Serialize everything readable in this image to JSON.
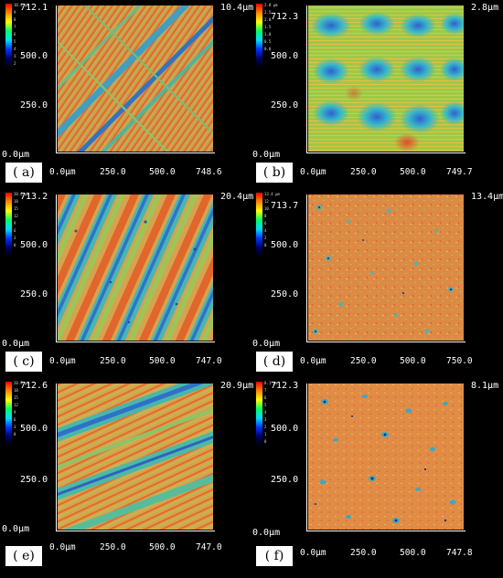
{
  "colors": {
    "scale": [
      "#ff0000",
      "#ff8800",
      "#ffff00",
      "#00ff66",
      "#00ddff",
      "#0033ff",
      "#000066",
      "#000000"
    ],
    "surface_base": "#d8a050",
    "background": "#000000"
  },
  "panels": [
    {
      "id": "a",
      "letter": "( a)",
      "zmax": "10.4μm",
      "ymax": "712.1",
      "y_mid_hi": "500.0",
      "y_mid_lo": "250.0",
      "y0": "0.0μm",
      "x0": "0.0μm",
      "x1": "250.0",
      "x2": "500.0",
      "xmax": "748.6",
      "cbar_ticks": [
        "10.4 μm",
        "9",
        "8",
        "7",
        "6",
        "5",
        "4",
        "3",
        "2",
        "1"
      ],
      "texture": "diagonal-scratches"
    },
    {
      "id": "b",
      "letter": "( b)",
      "zmax": "2.8μm",
      "ymax": "712.3",
      "y_mid_hi": "500.0",
      "y_mid_lo": "250.0",
      "y0": "0.0μm",
      "x0": "0.0μm",
      "x1": "250.0",
      "x2": "500.0",
      "xmax": "749.7",
      "cbar_ticks": [
        "2.8 μm",
        "2.5",
        "2.0",
        "1.5",
        "1.0",
        "0.5",
        "0.0"
      ],
      "texture": "dimple-grid"
    },
    {
      "id": "c",
      "letter": "( c)",
      "zmax": "20.4μm",
      "ymax": "713.2",
      "y_mid_hi": "500.0",
      "y_mid_lo": "250.0",
      "y0": "0.0μm",
      "x0": "0.0μm",
      "x1": "250.0",
      "x2": "500.0",
      "xmax": "747.0",
      "cbar_ticks": [
        "20.4 μm",
        "18",
        "15",
        "12",
        "9",
        "6",
        "3",
        "0"
      ],
      "texture": "steep-stripes"
    },
    {
      "id": "d",
      "letter": "( d)",
      "zmax": "13.4μm",
      "ymax": "713.7",
      "y_mid_hi": "500.0",
      "y_mid_lo": "250.0",
      "y0": "0.0μm",
      "x0": "0.0μm",
      "x1": "250.0",
      "x2": "500.0",
      "xmax": "750.0",
      "cbar_ticks": [
        "13.4 μm",
        "12",
        "10",
        "8",
        "6",
        "4",
        "2",
        "0"
      ],
      "texture": "speckled"
    },
    {
      "id": "e",
      "letter": "( e)",
      "zmax": "20.9μm",
      "ymax": "712.6",
      "y_mid_hi": "500.0",
      "y_mid_lo": "250.0",
      "y0": "0.0μm",
      "x0": "0.0μm",
      "x1": "250.0",
      "x2": "500.0",
      "xmax": "747.0",
      "cbar_ticks": [
        "20.9 μm",
        "18",
        "15",
        "12",
        "9",
        "6",
        "3",
        "0"
      ],
      "texture": "shallow-stripes"
    },
    {
      "id": "f",
      "letter": "( f)",
      "zmax": "8.1μm",
      "ymax": "712.3",
      "y_mid_hi": "500.0",
      "y_mid_lo": "250.0",
      "y0": "0.0μm",
      "x0": "0.0μm",
      "x1": "250.0",
      "x2": "500.0",
      "xmax": "747.8",
      "cbar_ticks": [
        "8.1 μm",
        "7",
        "6",
        "5",
        "4",
        "3",
        "2",
        "1",
        "0"
      ],
      "texture": "pitted"
    }
  ]
}
